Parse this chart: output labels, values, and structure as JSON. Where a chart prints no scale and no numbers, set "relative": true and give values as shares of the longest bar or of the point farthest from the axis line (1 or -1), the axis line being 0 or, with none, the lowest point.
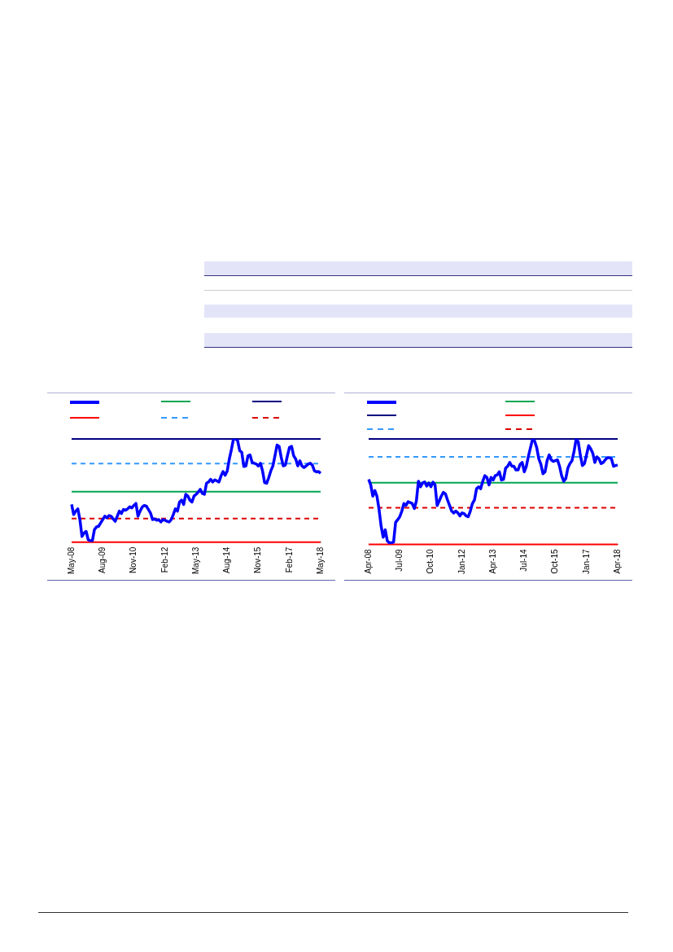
{
  "chart_data": [
    {
      "type": "line",
      "relative": true,
      "grid": false,
      "marker": "none",
      "categories": [
        "May-08",
        null,
        null,
        null,
        null,
        null,
        null,
        null,
        null,
        null,
        null,
        null,
        null,
        null,
        null,
        "Aug-09",
        null,
        null,
        null,
        null,
        null,
        null,
        null,
        null,
        null,
        null,
        null,
        null,
        null,
        null,
        "Nov-10",
        null,
        null,
        null,
        null,
        null,
        null,
        null,
        null,
        null,
        null,
        null,
        null,
        null,
        null,
        "Feb-12",
        null,
        null,
        null,
        null,
        null,
        null,
        null,
        null,
        null,
        null,
        null,
        null,
        null,
        null,
        "May-13",
        null,
        null,
        null,
        null,
        null,
        null,
        null,
        null,
        null,
        null,
        null,
        null,
        null,
        null,
        "Aug-14",
        null,
        null,
        null,
        null,
        null,
        null,
        null,
        null,
        null,
        null,
        null,
        null,
        null,
        null,
        "Nov-15",
        null,
        null,
        null,
        null,
        null,
        null,
        null,
        null,
        null,
        null,
        null,
        null,
        null,
        null,
        "Feb-17",
        null,
        null,
        null,
        null,
        null,
        null,
        null,
        null,
        null,
        null,
        null,
        null,
        null,
        null,
        "May-18"
      ],
      "series": [
        {
          "color": "#0000ff",
          "values": [
            0.365,
            0.267,
            0.3,
            0.322,
            0.218,
            0.055,
            0.088,
            0.104,
            0.023,
            0.013,
            0.013,
            0.121,
            0.147,
            0.153,
            0.186,
            0.218,
            0.251,
            0.235,
            0.257,
            0.251,
            0.225,
            0.202,
            0.251,
            0.3,
            0.277,
            0.316,
            0.309,
            0.322,
            0.342,
            0.332,
            0.355,
            0.375,
            0.251,
            0.3,
            0.339,
            0.355,
            0.349,
            0.316,
            0.283,
            0.218,
            0.225,
            0.212,
            0.218,
            0.195,
            0.218,
            0.212,
            0.202,
            0.195,
            0.218,
            0.267,
            0.322,
            0.3,
            0.388,
            0.407,
            0.365,
            0.463,
            0.446,
            0.407,
            0.388,
            0.446,
            0.463,
            0.485,
            0.511,
            0.472,
            0.463,
            0.57,
            0.583,
            0.609,
            0.583,
            0.603,
            0.593,
            0.583,
            0.642,
            0.684,
            0.648,
            0.691,
            0.805,
            0.896,
            1.0,
            1.0,
            0.984,
            0.886,
            0.87,
            0.733,
            0.739,
            0.837,
            0.844,
            0.772,
            0.765,
            0.756,
            0.739,
            0.765,
            0.691,
            0.577,
            0.57,
            0.625,
            0.691,
            0.739,
            0.837,
            0.941,
            0.928,
            0.821,
            0.739,
            0.746,
            0.837,
            0.919,
            0.928,
            0.837,
            0.805,
            0.739,
            0.788,
            0.739,
            0.723,
            0.739,
            0.756,
            0.765,
            0.746,
            0.691,
            0.681,
            0.684,
            0.668
          ]
        }
      ],
      "ref_lines": [
        {
          "axis": "y",
          "value": 0.489,
          "color": "#00a651",
          "line_style": "solid"
        },
        {
          "axis": "y",
          "value": 1,
          "color": "#000080",
          "line_style": "solid"
        },
        {
          "axis": "y",
          "value": 0,
          "color": "#ff0000",
          "line_style": "solid"
        },
        {
          "axis": "y",
          "value": 0.762,
          "color": "#3399ff",
          "line_style": "dashed"
        },
        {
          "axis": "y",
          "value": 0.228,
          "color": "#dd0000",
          "line_style": "dashed"
        }
      ]
    },
    {
      "type": "line",
      "relative": true,
      "grid": false,
      "marker": "none",
      "categories": [
        "Apr-08",
        null,
        null,
        null,
        null,
        null,
        null,
        null,
        null,
        null,
        null,
        null,
        null,
        null,
        null,
        "Jul-09",
        null,
        null,
        null,
        null,
        null,
        null,
        null,
        null,
        null,
        null,
        null,
        null,
        null,
        null,
        "Oct-10",
        null,
        null,
        null,
        null,
        null,
        null,
        null,
        null,
        null,
        null,
        null,
        null,
        null,
        null,
        "Jan-12",
        null,
        null,
        null,
        null,
        null,
        null,
        null,
        null,
        null,
        null,
        null,
        null,
        null,
        null,
        "Apr-13",
        null,
        null,
        null,
        null,
        null,
        null,
        null,
        null,
        null,
        null,
        null,
        null,
        null,
        null,
        "Jul-14",
        null,
        null,
        null,
        null,
        null,
        null,
        null,
        null,
        null,
        null,
        null,
        null,
        null,
        null,
        "Oct-15",
        null,
        null,
        null,
        null,
        null,
        null,
        null,
        null,
        null,
        null,
        null,
        null,
        null,
        null,
        "Jan-17",
        null,
        null,
        null,
        null,
        null,
        null,
        null,
        null,
        null,
        null,
        null,
        null,
        null,
        null,
        "Apr-18"
      ],
      "series": [
        {
          "color": "#0000ff",
          "values": [
            0.617,
            0.564,
            0.457,
            0.511,
            0.457,
            0.333,
            0.174,
            0.067,
            0.138,
            0.032,
            0.014,
            0.014,
            0.021,
            0.209,
            0.234,
            0.262,
            0.316,
            0.387,
            0.369,
            0.404,
            0.397,
            0.387,
            0.34,
            0.411,
            0.599,
            0.546,
            0.582,
            0.592,
            0.553,
            0.582,
            0.546,
            0.589,
            0.564,
            0.369,
            0.411,
            0.457,
            0.493,
            0.479,
            0.422,
            0.369,
            0.316,
            0.298,
            0.316,
            0.298,
            0.27,
            0.298,
            0.291,
            0.27,
            0.262,
            0.316,
            0.387,
            0.422,
            0.528,
            0.546,
            0.528,
            0.599,
            0.652,
            0.635,
            0.564,
            0.635,
            0.61,
            0.652,
            0.66,
            0.688,
            0.61,
            0.617,
            0.723,
            0.741,
            0.777,
            0.741,
            0.741,
            0.706,
            0.706,
            0.759,
            0.777,
            0.688,
            0.741,
            0.837,
            0.918,
            1.0,
            0.979,
            0.918,
            0.812,
            0.759,
            0.67,
            0.688,
            0.794,
            0.848,
            0.801,
            0.787,
            0.794,
            0.801,
            0.741,
            0.652,
            0.599,
            0.624,
            0.723,
            0.766,
            0.794,
            0.883,
            1.0,
            0.972,
            0.848,
            0.748,
            0.766,
            0.848,
            0.936,
            0.908,
            0.865,
            0.777,
            0.83,
            0.812,
            0.766,
            0.777,
            0.801,
            0.823,
            0.823,
            0.812,
            0.741,
            0.748,
            0.752
          ]
        }
      ],
      "ref_lines": [
        {
          "axis": "y",
          "value": 0.585,
          "color": "#00a651",
          "line_style": "solid"
        },
        {
          "axis": "y",
          "value": 1,
          "color": "#000080",
          "line_style": "solid"
        },
        {
          "axis": "y",
          "value": 0,
          "color": "#ff0000",
          "line_style": "solid"
        },
        {
          "axis": "y",
          "value": 0.83,
          "color": "#3399ff",
          "line_style": "dashed"
        },
        {
          "axis": "y",
          "value": 0.348,
          "color": "#dd0000",
          "line_style": "dashed"
        }
      ]
    }
  ]
}
